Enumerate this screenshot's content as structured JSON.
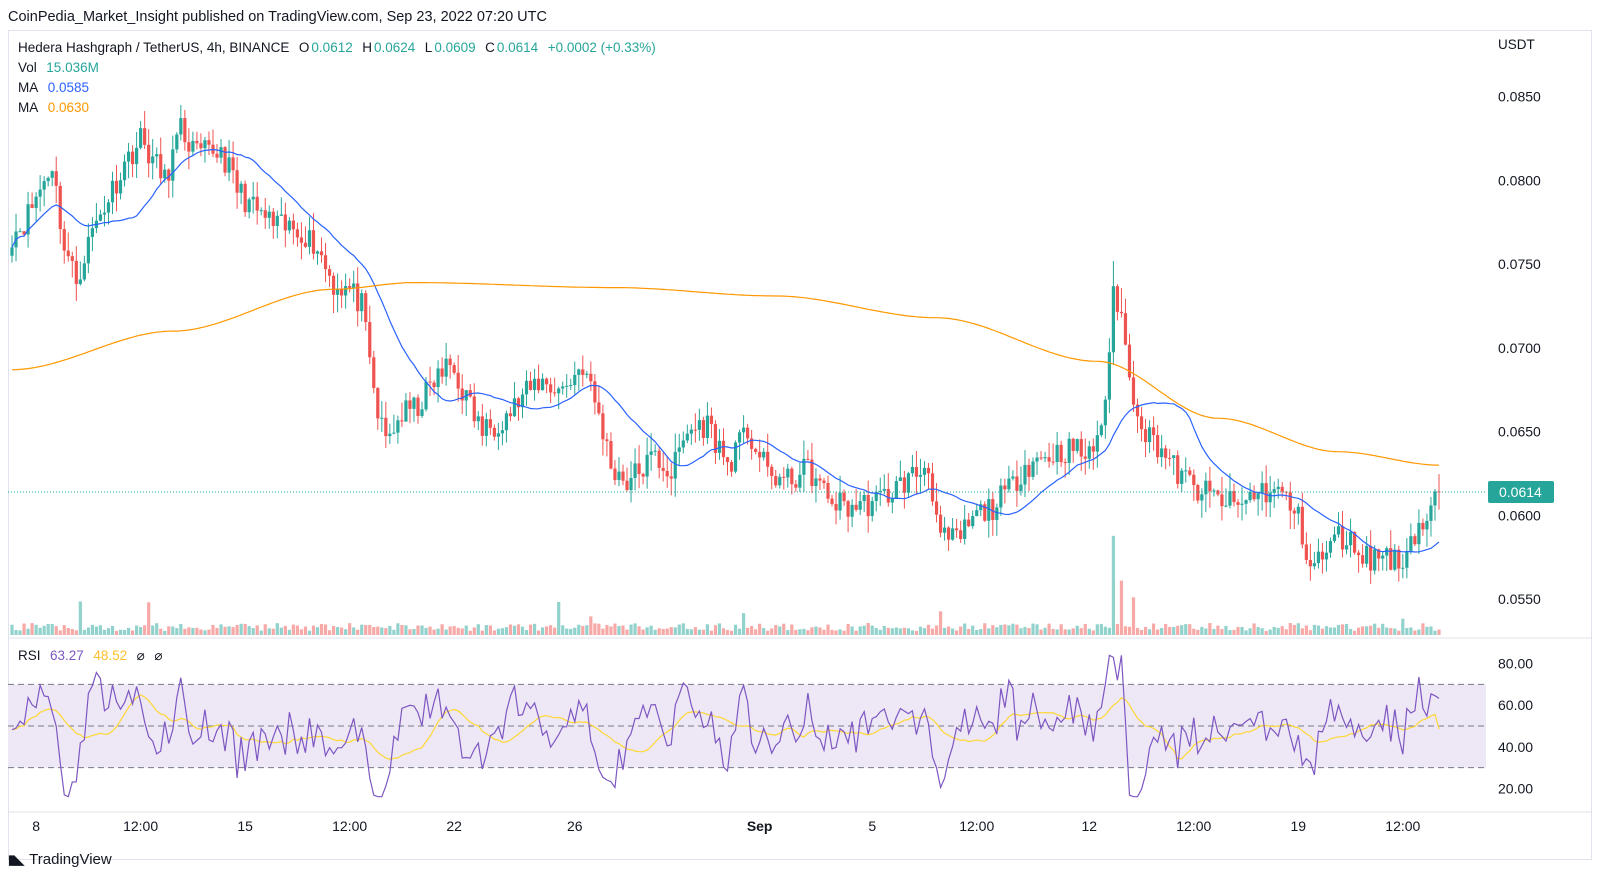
{
  "publish_line": "CoinPedia_Market_Insight published on TradingView.com, Sep 23, 2022 07:20 UTC",
  "footer_brand": "TradingView",
  "colors": {
    "up": "#26a69a",
    "down": "#ef5350",
    "ma_fast": "#2962ff",
    "ma_slow": "#ff9800",
    "rsi": "#7e57c2",
    "rsi_ma": "#fdd835",
    "rsi_band": "#ede7f6"
  },
  "chart_data": {
    "type": "candlestick",
    "symbol": "Hedera Hashgraph / TetherUS, 4h, BINANCE",
    "ohlc": {
      "o_label": "O",
      "o": "0.0612",
      "h_label": "H",
      "h": "0.0624",
      "l_label": "L",
      "l": "0.0609",
      "c_label": "C",
      "c": "0.0614",
      "change": "+0.0002 (+0.33%)"
    },
    "vol_label": "Vol",
    "vol_value": "15.036M",
    "ma1_label": "MA",
    "ma1_value": "0.0585",
    "ma2_label": "MA",
    "ma2_value": "0.0630",
    "currency": "USDT",
    "last_price": 0.0614,
    "last_price_label": "0.0614",
    "price_range": [
      0.0528,
      0.0885
    ],
    "y_ticks": [
      0.085,
      0.08,
      0.075,
      0.07,
      0.065,
      0.06,
      0.055
    ],
    "y_tick_labels": [
      "0.0850",
      "0.0800",
      "0.0750",
      "0.0700",
      "0.0650",
      "0.0600",
      "0.0550"
    ],
    "x_tick_labels": [
      {
        "text": "8",
        "bold": false
      },
      {
        "text": "12:00",
        "bold": false
      },
      {
        "text": "15",
        "bold": false
      },
      {
        "text": "12:00",
        "bold": false
      },
      {
        "text": "22",
        "bold": false
      },
      {
        "text": "26",
        "bold": false
      },
      {
        "text": "Sep",
        "bold": true
      },
      {
        "text": "5",
        "bold": false
      },
      {
        "text": "12:00",
        "bold": false
      },
      {
        "text": "12",
        "bold": false
      },
      {
        "text": "12:00",
        "bold": false
      },
      {
        "text": "19",
        "bold": false
      },
      {
        "text": "12:00",
        "bold": false
      }
    ],
    "x_tick_bars": [
      6,
      32,
      58,
      84,
      110,
      140,
      186,
      214,
      240,
      268,
      294,
      320,
      346
    ],
    "price_anchors": [
      [
        0,
        0.0768
      ],
      [
        3,
        0.0775
      ],
      [
        7,
        0.0795
      ],
      [
        10,
        0.081
      ],
      [
        13,
        0.076
      ],
      [
        16,
        0.074
      ],
      [
        20,
        0.077
      ],
      [
        24,
        0.079
      ],
      [
        28,
        0.081
      ],
      [
        32,
        0.0825
      ],
      [
        38,
        0.08
      ],
      [
        42,
        0.083
      ],
      [
        46,
        0.0815
      ],
      [
        52,
        0.0818
      ],
      [
        56,
        0.0795
      ],
      [
        60,
        0.0783
      ],
      [
        66,
        0.0772
      ],
      [
        72,
        0.077
      ],
      [
        76,
        0.076
      ],
      [
        80,
        0.0738
      ],
      [
        84,
        0.0735
      ],
      [
        87,
        0.0725
      ],
      [
        89,
        0.069
      ],
      [
        91,
        0.066
      ],
      [
        93,
        0.0645
      ],
      [
        97,
        0.066
      ],
      [
        101,
        0.0665
      ],
      [
        105,
        0.068
      ],
      [
        109,
        0.069
      ],
      [
        113,
        0.067
      ],
      [
        117,
        0.065
      ],
      [
        123,
        0.066
      ],
      [
        127,
        0.067
      ],
      [
        131,
        0.068
      ],
      [
        137,
        0.0675
      ],
      [
        142,
        0.069
      ],
      [
        146,
        0.066
      ],
      [
        149,
        0.063
      ],
      [
        153,
        0.062
      ],
      [
        160,
        0.0635
      ],
      [
        164,
        0.0625
      ],
      [
        168,
        0.065
      ],
      [
        173,
        0.0655
      ],
      [
        178,
        0.063
      ],
      [
        183,
        0.065
      ],
      [
        188,
        0.0625
      ],
      [
        193,
        0.062
      ],
      [
        198,
        0.0628
      ],
      [
        203,
        0.061
      ],
      [
        208,
        0.0605
      ],
      [
        215,
        0.0608
      ],
      [
        222,
        0.062
      ],
      [
        228,
        0.063
      ],
      [
        231,
        0.0585
      ],
      [
        235,
        0.0585
      ],
      [
        240,
        0.06
      ],
      [
        244,
        0.0605
      ],
      [
        248,
        0.0615
      ],
      [
        252,
        0.063
      ],
      [
        258,
        0.0636
      ],
      [
        264,
        0.064
      ],
      [
        268,
        0.0635
      ],
      [
        271,
        0.0655
      ],
      [
        273,
        0.069
      ],
      [
        274,
        0.0735
      ],
      [
        276,
        0.072
      ],
      [
        278,
        0.068
      ],
      [
        280,
        0.0665
      ],
      [
        282,
        0.065
      ],
      [
        286,
        0.064
      ],
      [
        290,
        0.0625
      ],
      [
        295,
        0.0615
      ],
      [
        300,
        0.061
      ],
      [
        305,
        0.0605
      ],
      [
        310,
        0.0615
      ],
      [
        316,
        0.0613
      ],
      [
        320,
        0.0598
      ],
      [
        323,
        0.057
      ],
      [
        326,
        0.0575
      ],
      [
        330,
        0.0588
      ],
      [
        334,
        0.0582
      ],
      [
        338,
        0.0574
      ],
      [
        342,
        0.0578
      ],
      [
        345,
        0.057
      ],
      [
        348,
        0.0587
      ],
      [
        352,
        0.0598
      ],
      [
        355,
        0.0614
      ]
    ],
    "bars": 356,
    "volume_spikes": [
      [
        17,
        4
      ],
      [
        34,
        3.5
      ],
      [
        136,
        3.2
      ],
      [
        144,
        3.5
      ],
      [
        182,
        2.5
      ],
      [
        231,
        3.3
      ],
      [
        274,
        14
      ],
      [
        276,
        9
      ],
      [
        279,
        4
      ],
      [
        346,
        3.3
      ]
    ],
    "rsi": {
      "label": "RSI",
      "value": "63.27",
      "ma_value": "48.52",
      "range": [
        12,
        88
      ],
      "bands": [
        30,
        50,
        70
      ],
      "y_ticks": [
        "80.00",
        "60.00",
        "40.00",
        "20.00"
      ],
      "y_tick_values": [
        80,
        60,
        40,
        20
      ]
    },
    "indicator_icons": [
      "hidden-eye-icon",
      "hidden-eye-icon"
    ]
  }
}
